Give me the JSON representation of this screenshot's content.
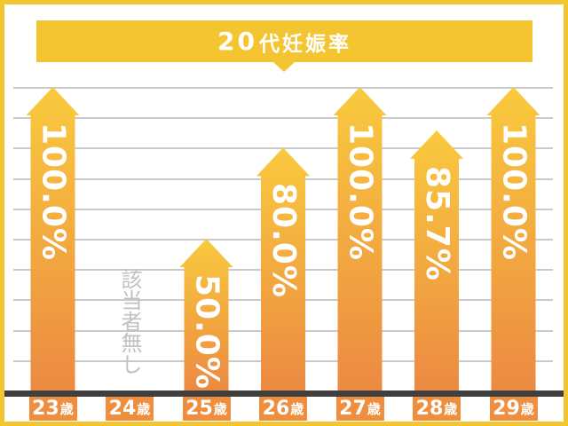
{
  "title": {
    "num": "20",
    "rest": "代妊娠率",
    "full": "20代妊娠率"
  },
  "chart_data": {
    "type": "bar",
    "title": "20代妊娠率",
    "categories": [
      "23歳",
      "24歳",
      "25歳",
      "26歳",
      "27歳",
      "28歳",
      "29歳"
    ],
    "category_parts": [
      {
        "num": "23",
        "suffix": "歳"
      },
      {
        "num": "24",
        "suffix": "歳"
      },
      {
        "num": "25",
        "suffix": "歳"
      },
      {
        "num": "26",
        "suffix": "歳"
      },
      {
        "num": "27",
        "suffix": "歳"
      },
      {
        "num": "28",
        "suffix": "歳"
      },
      {
        "num": "29",
        "suffix": "歳"
      }
    ],
    "values": [
      100.0,
      null,
      50.0,
      80.0,
      100.0,
      85.7,
      100.0
    ],
    "bar_labels": [
      "100.0%",
      null,
      "50.0%",
      "80.0%",
      "100.0%",
      "85.7%",
      "100.0%"
    ],
    "no_data_text": "該当者無し",
    "xlabel": "",
    "ylabel": "",
    "ylim": [
      0,
      100
    ],
    "gridlines": {
      "visible": true,
      "count": 10,
      "step_percent": 10
    },
    "legend": "none",
    "bar_shape": "upward-arrow"
  },
  "colors": {
    "frame_yellow": "#F4C431",
    "banner_yellow": "#F4C431",
    "bar_gradient_top": "#F9CA3E",
    "bar_gradient_bottom": "#EC8A42",
    "label_box_orange": "#EE8E3E",
    "axis_dark": "#3F3F3F",
    "gridline_gray": "#CACACA",
    "no_data_gray": "#C1C1C1",
    "text_white": "#FFFFFF",
    "background": "#FFFFFF"
  }
}
